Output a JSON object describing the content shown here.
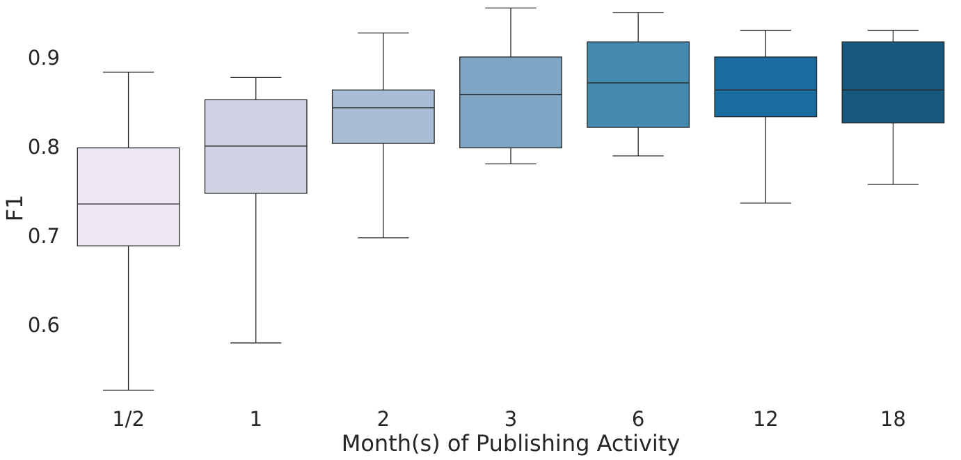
{
  "chart_data": {
    "type": "box",
    "title": "",
    "xlabel": "Month(s) of Publishing Activity",
    "ylabel": "F1",
    "categories": [
      "1/2",
      "1",
      "2",
      "3",
      "6",
      "12",
      "18"
    ],
    "y_ticks": [
      0.6,
      0.7,
      0.8,
      0.9
    ],
    "y_tick_labels": [
      "0.6",
      "0.7",
      "0.8",
      "0.9"
    ],
    "ylim": [
      0.508,
      0.965
    ],
    "grid": false,
    "legend": "none",
    "boxes": [
      {
        "category": "1/2",
        "whisker_low": 0.527,
        "q1": 0.689,
        "median": 0.736,
        "q3": 0.799,
        "whisker_high": 0.884,
        "color": "#ECE7F2"
      },
      {
        "category": "1",
        "whisker_low": 0.58,
        "q1": 0.748,
        "median": 0.801,
        "q3": 0.853,
        "whisker_high": 0.878,
        "color": "#D0D3E4"
      },
      {
        "category": "2",
        "whisker_low": 0.698,
        "q1": 0.804,
        "median": 0.844,
        "q3": 0.864,
        "whisker_high": 0.928,
        "color": "#A9BDD6"
      },
      {
        "category": "3",
        "whisker_low": 0.781,
        "q1": 0.799,
        "median": 0.859,
        "q3": 0.901,
        "whisker_high": 0.956,
        "color": "#7EA6C4"
      },
      {
        "category": "6",
        "whisker_low": 0.79,
        "q1": 0.822,
        "median": 0.872,
        "q3": 0.918,
        "whisker_high": 0.951,
        "color": "#458AB1"
      },
      {
        "category": "12",
        "whisker_low": 0.737,
        "q1": 0.834,
        "median": 0.864,
        "q3": 0.901,
        "whisker_high": 0.931,
        "color": "#1B6C9F"
      },
      {
        "category": "18",
        "whisker_low": 0.758,
        "q1": 0.827,
        "median": 0.864,
        "q3": 0.918,
        "whisker_high": 0.931,
        "color": "#17587E"
      }
    ]
  }
}
